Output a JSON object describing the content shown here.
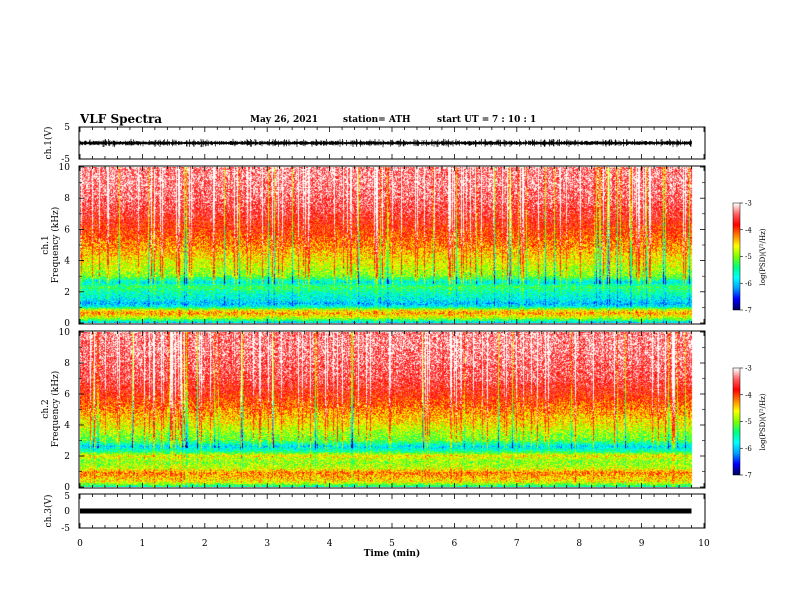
{
  "header": {
    "title": "VLF Spectra",
    "date": "May 26, 2021",
    "station": "station= ATH",
    "start_label": "start  UT =",
    "start_time": "7 : 10 : 1"
  },
  "colors": {
    "scale": [
      "#000060",
      "#0000ff",
      "#00a0ff",
      "#00ffff",
      "#00ff80",
      "#80ff00",
      "#ffff00",
      "#ff8000",
      "#ff0000",
      "#ff6060",
      "#ffffff"
    ],
    "waveform": "#000000"
  },
  "chart_data": [
    {
      "type": "line",
      "name": "ch1_waveform",
      "ylabel": "ch.1(V)",
      "ylim": [
        -5,
        5
      ],
      "yticks": [
        "5",
        "-5"
      ],
      "xlim": [
        0,
        10
      ],
      "envelope_V": {
        "min": -1.3,
        "max": 1.3,
        "typical": 0.8
      },
      "data_end_min": 9.8
    },
    {
      "type": "heatmap",
      "name": "ch1_spectrogram",
      "ylabel_channel": "ch.1",
      "ylabel": "Frequency  (kHz)",
      "ylim": [
        0,
        10
      ],
      "yticks": [
        "0",
        "2",
        "4",
        "6",
        "8",
        "10"
      ],
      "xlim": [
        0,
        10
      ],
      "data_end_min": 9.8,
      "colorbar": {
        "label": "log(PSD)(V²/Hz)",
        "range": [
          -7,
          -3
        ],
        "ticks": [
          "-3",
          "-4",
          "-5",
          "-6",
          "-7"
        ]
      },
      "profile_freq_kHz": [
        0.0,
        0.3,
        0.6,
        0.8,
        1.0,
        1.2,
        1.5,
        1.9,
        2.3,
        2.6,
        3.0,
        3.5,
        4.0,
        4.5,
        5.0,
        6.0,
        7.0,
        8.0,
        9.0,
        10.0
      ],
      "profile_logpsd": [
        -5.9,
        -4.8,
        -4.3,
        -4.6,
        -5.7,
        -6.1,
        -5.8,
        -5.6,
        -5.3,
        -5.8,
        -5.0,
        -4.8,
        -4.6,
        -4.4,
        -4.2,
        -3.9,
        -3.6,
        -3.4,
        -3.3,
        -3.3
      ]
    },
    {
      "type": "heatmap",
      "name": "ch2_spectrogram",
      "ylabel_channel": "ch.2",
      "ylabel": "Frequency  (kHz)",
      "ylim": [
        0,
        10
      ],
      "yticks": [
        "0",
        "2",
        "4",
        "6",
        "8",
        "10"
      ],
      "xlim": [
        0,
        10
      ],
      "data_end_min": 9.8,
      "colorbar": {
        "label": "log(PSD)(V²/Hz)",
        "range": [
          -7,
          -3
        ],
        "ticks": [
          "-3",
          "-4",
          "-5",
          "-6",
          "-7"
        ]
      },
      "profile_freq_kHz": [
        0.0,
        0.3,
        0.6,
        0.9,
        1.2,
        1.6,
        2.0,
        2.3,
        2.6,
        3.0,
        3.5,
        4.0,
        4.5,
        5.0,
        6.0,
        7.0,
        8.0,
        9.0,
        10.0
      ],
      "profile_logpsd": [
        -5.5,
        -4.6,
        -4.4,
        -4.2,
        -4.8,
        -5.0,
        -4.6,
        -5.5,
        -5.9,
        -5.1,
        -4.9,
        -4.6,
        -4.4,
        -4.2,
        -3.8,
        -3.5,
        -3.4,
        -3.3,
        -3.3
      ]
    },
    {
      "type": "line",
      "name": "ch3_waveform",
      "ylabel": "ch.3(V)",
      "ylim": [
        -5,
        5
      ],
      "yticks": [
        "5",
        "0",
        "-5"
      ],
      "xlim": [
        0,
        10
      ],
      "xlabel": "Time  (min)",
      "xticks": [
        "0",
        "1",
        "2",
        "3",
        "4",
        "5",
        "6",
        "7",
        "8",
        "9",
        "10"
      ],
      "level_V": 0,
      "data_end_min": 9.8
    }
  ]
}
